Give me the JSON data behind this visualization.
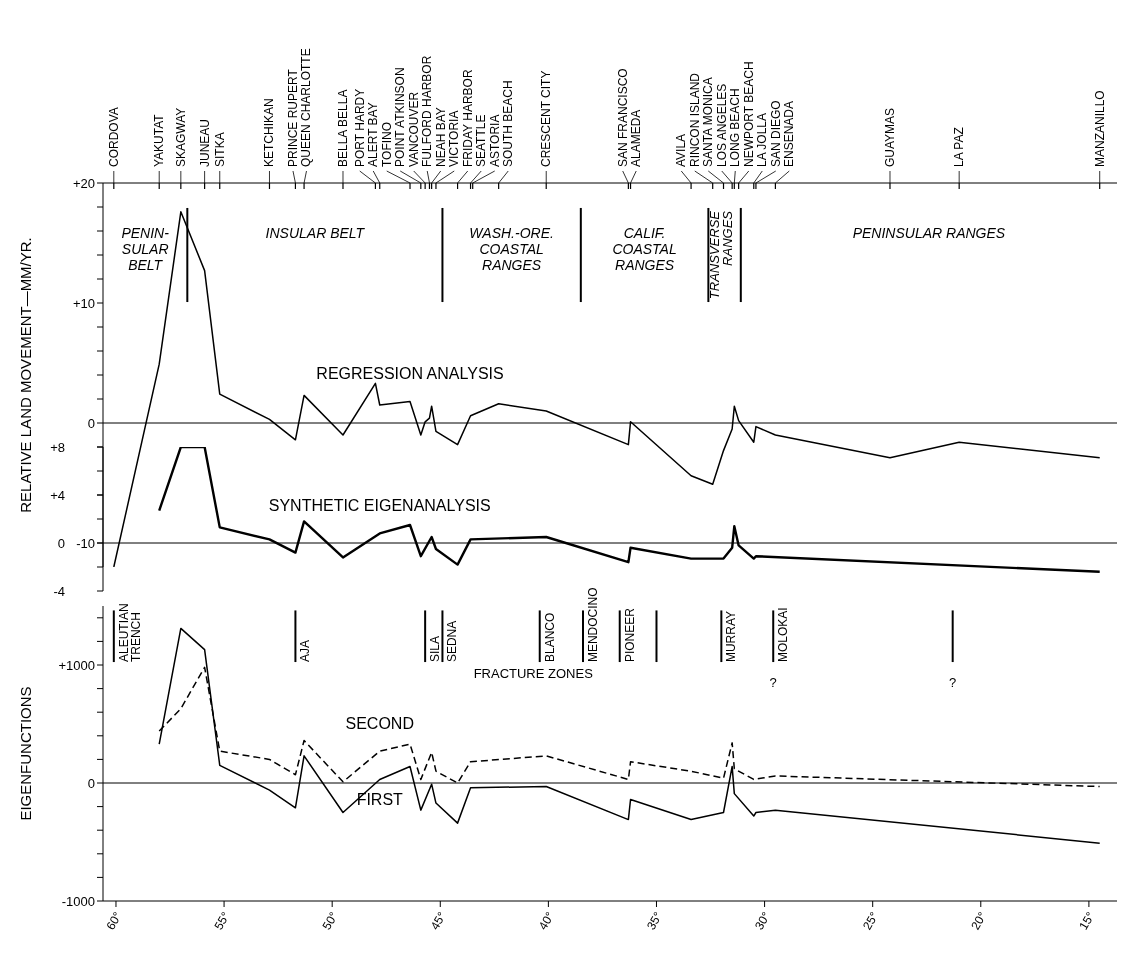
{
  "chart_data": [
    {
      "type": "line",
      "ylabel": "RELATIVE LAND MOVEMENT—MM/YR.",
      "marker": "none",
      "tick_labels": "y",
      "xlim": [
        60.6,
        13.7
      ],
      "ylim": [
        -12,
        20
      ],
      "yticks": [
        {
          "value": 20,
          "label": "+20"
        },
        {
          "value": 18,
          "label": null
        },
        {
          "value": 16,
          "label": null
        },
        {
          "value": 14,
          "label": null
        },
        {
          "value": 12,
          "label": null
        },
        {
          "value": 10,
          "label": "+10"
        },
        {
          "value": 8,
          "label": null
        },
        {
          "value": 6,
          "label": null
        },
        {
          "value": 4,
          "label": null
        },
        {
          "value": 2,
          "label": null
        },
        0,
        {
          "value": -2,
          "label": null
        },
        {
          "value": -4,
          "label": null
        },
        {
          "value": -6,
          "label": null
        },
        {
          "value": -8,
          "label": null
        },
        -10
      ],
      "series": [
        {
          "name": "REGRESSION ANALYSIS",
          "color": "#000000",
          "x": [
            60.1,
            58.0,
            57.0,
            55.9,
            55.2,
            52.9,
            51.7,
            51.3,
            49.5,
            48.0,
            47.8,
            46.4,
            45.9,
            45.7,
            45.5,
            45.4,
            45.2,
            44.2,
            43.6,
            42.3,
            40.1,
            36.3,
            36.2,
            33.4,
            32.4,
            31.9,
            31.5,
            31.4,
            31.2,
            30.5,
            30.4,
            29.5,
            24.2,
            21.0,
            14.5
          ],
          "values": [
            -12.0,
            4.9,
            17.6,
            12.7,
            2.4,
            0.3,
            -1.4,
            2.3,
            -1.0,
            3.3,
            1.5,
            1.8,
            -1.0,
            0.1,
            0.4,
            1.4,
            -0.7,
            -1.8,
            0.6,
            1.6,
            1.0,
            -1.8,
            0.1,
            -4.4,
            -5.1,
            -2.3,
            -0.5,
            1.4,
            0.2,
            -1.6,
            -0.3,
            -1.0,
            -2.9,
            -1.6,
            -2.9
          ]
        }
      ],
      "ref_lines": [
        {
          "axis": "y",
          "value": 0
        },
        {
          "axis": "x",
          "value": 56.7
        },
        {
          "axis": "x",
          "value": 44.9
        },
        {
          "axis": "x",
          "value": 38.5
        },
        {
          "axis": "x",
          "value": 32.6
        },
        {
          "axis": "x",
          "value": 31.1
        }
      ],
      "annotations": [
        {
          "text": "CORDOVA",
          "x": 60.1
        },
        {
          "text": "YAKUTAT",
          "x": 58.0
        },
        {
          "text": "SKAGWAY",
          "x": 57.0
        },
        {
          "text": "JUNEAU",
          "x": 55.9
        },
        {
          "text": "SITKA",
          "x": 55.2
        },
        {
          "text": "KETCHIKAN",
          "x": 52.9
        },
        {
          "text": "PRINCE RUPERT",
          "x": 51.7
        },
        {
          "text": "QUEEN CHARLOTTE",
          "x": 51.3
        },
        {
          "text": "BELLA BELLA",
          "x": 49.5
        },
        {
          "text": "PORT HARDY",
          "x": 48.0
        },
        {
          "text": "ALERT BAY",
          "x": 47.8
        },
        {
          "text": "TOFINO",
          "x": 46.4
        },
        {
          "text": "POINT ATKINSON",
          "x": 45.9
        },
        {
          "text": "VANCOUVER",
          "x": 45.7
        },
        {
          "text": "FULFORD HARBOR",
          "x": 45.5
        },
        {
          "text": "NEAH BAY",
          "x": 45.4
        },
        {
          "text": "VICTORIA",
          "x": 45.2
        },
        {
          "text": "FRIDAY HARBOR",
          "x": 44.2
        },
        {
          "text": "SEATTLE",
          "x": 43.6
        },
        {
          "text": "ASTORIA",
          "x": 43.5
        },
        {
          "text": "SOUTH BEACH",
          "x": 42.3
        },
        {
          "text": "CRESCENT CITY",
          "x": 40.1
        },
        {
          "text": "SAN FRANCISCO",
          "x": 36.3
        },
        {
          "text": "ALAMEDA",
          "x": 36.2
        },
        {
          "text": "AVILA",
          "x": 33.4
        },
        {
          "text": "RINCON ISLAND",
          "x": 32.4
        },
        {
          "text": "SANTA MONICA",
          "x": 31.9
        },
        {
          "text": "LOS ANGELES",
          "x": 31.5
        },
        {
          "text": "LONG BEACH",
          "x": 31.4
        },
        {
          "text": "NEWPORT BEACH",
          "x": 31.2
        },
        {
          "text": "LA JOLLA",
          "x": 30.5
        },
        {
          "text": "SAN DIEGO",
          "x": 30.4
        },
        {
          "text": "ENSENADA",
          "x": 29.5
        },
        {
          "text": "GUAYMAS",
          "x": 24.2
        },
        {
          "text": "LA PAZ",
          "x": 21.0
        },
        {
          "text": "MANZANILLO",
          "x": 14.5
        },
        "PENIN-\nSULAR\nBELT",
        "INSULAR BELT",
        "WASH.-ORE.\nCOASTAL\nRANGES",
        "CALIF.\nCOASTAL\nRANGES",
        "TRANSVERSE\nRANGES",
        "PENINSULAR RANGES"
      ]
    },
    {
      "type": "line",
      "tick_labels": "y",
      "marker": "none",
      "xlim": [
        60.6,
        13.7
      ],
      "ylim": [
        -4,
        8
      ],
      "yticks": [
        {
          "value": 8,
          "label": "+8"
        },
        {
          "value": 4,
          "label": "+4"
        },
        0,
        {
          "value": -2,
          "label": null
        },
        -4
      ],
      "series": [
        {
          "name": "SYNTHETIC EIGENANALYSIS",
          "color": "#000000",
          "x": [
            58.0,
            57.0,
            55.9,
            55.2,
            52.9,
            51.7,
            51.3,
            49.5,
            47.8,
            46.4,
            45.9,
            45.4,
            45.2,
            44.2,
            43.6,
            40.1,
            36.3,
            36.2,
            33.4,
            31.9,
            31.5,
            31.4,
            31.2,
            30.5,
            30.4,
            14.5
          ],
          "values": [
            2.7,
            8.0,
            8.0,
            1.3,
            0.3,
            -0.8,
            1.8,
            -1.2,
            0.8,
            1.5,
            -1.1,
            0.5,
            -0.5,
            -1.8,
            0.3,
            0.5,
            -1.6,
            -0.4,
            -1.3,
            -1.3,
            -0.4,
            1.4,
            -0.2,
            -1.3,
            -1.1,
            -2.4
          ]
        }
      ],
      "ref_lines": [
        {
          "axis": "y",
          "value": 0
        }
      ]
    },
    {
      "type": "line",
      "ylabel": "EIGENFUNCTIONS",
      "marker": "none",
      "xlim": [
        60.6,
        13.7
      ],
      "xticks": [
        {
          "value": 60,
          "label": "60°"
        },
        {
          "value": 55,
          "label": "55°"
        },
        {
          "value": 50,
          "label": "50°"
        },
        {
          "value": 45,
          "label": "45°"
        },
        {
          "value": 40,
          "label": "40°"
        },
        {
          "value": 35,
          "label": "35°"
        },
        {
          "value": 30,
          "label": "30°"
        },
        {
          "value": 25,
          "label": "25°"
        },
        {
          "value": 20,
          "label": "20°"
        },
        {
          "value": 15,
          "label": "15°"
        }
      ],
      "ylim": [
        -1000,
        1500
      ],
      "yticks": [
        {
          "value": 1400,
          "label": null
        },
        {
          "value": 1200,
          "label": null
        },
        {
          "value": 1000,
          "label": "+1000"
        },
        {
          "value": 800,
          "label": null
        },
        {
          "value": 600,
          "label": null
        },
        {
          "value": 400,
          "label": null
        },
        {
          "value": 200,
          "label": null
        },
        0,
        {
          "value": -200,
          "label": null
        },
        {
          "value": -400,
          "label": null
        },
        {
          "value": -600,
          "label": null
        },
        {
          "value": -800,
          "label": null
        },
        -1000
      ],
      "series": [
        {
          "name": "FIRST",
          "color": "#000000",
          "line_style": "solid",
          "x": [
            58.0,
            57.0,
            55.9,
            55.2,
            52.9,
            51.7,
            51.3,
            49.5,
            47.8,
            46.4,
            45.9,
            45.4,
            45.2,
            44.2,
            43.6,
            40.1,
            36.3,
            36.2,
            33.4,
            31.9,
            31.5,
            31.4,
            30.5,
            30.4,
            29.5,
            14.5
          ],
          "values": [
            330,
            1310,
            1130,
            150,
            -60,
            -210,
            230,
            -250,
            30,
            140,
            -230,
            -10,
            -170,
            -340,
            -40,
            -30,
            -310,
            -140,
            -310,
            -250,
            140,
            -90,
            -280,
            -250,
            -230,
            -510
          ]
        },
        {
          "name": "SECOND",
          "color": "#000000",
          "line_style": "dashed",
          "x": [
            58.0,
            57.0,
            55.9,
            55.2,
            52.9,
            51.7,
            51.3,
            49.5,
            47.8,
            46.4,
            45.9,
            45.4,
            45.2,
            44.2,
            43.6,
            40.1,
            36.3,
            36.2,
            33.4,
            31.9,
            31.5,
            31.4,
            30.5,
            29.5,
            14.5
          ],
          "values": [
            440,
            630,
            980,
            270,
            200,
            70,
            360,
            10,
            270,
            330,
            30,
            260,
            100,
            0,
            180,
            230,
            30,
            180,
            100,
            40,
            340,
            120,
            30,
            60,
            -30
          ]
        }
      ],
      "ref_lines": [
        {
          "axis": "y",
          "value": 0
        },
        {
          "axis": "x",
          "value": 60.1,
          "label": "ALEUTIAN\nTRENCH"
        },
        {
          "axis": "x",
          "value": 51.7,
          "label": "AJA"
        },
        {
          "axis": "x",
          "value": 45.7,
          "label": "SILA"
        },
        {
          "axis": "x",
          "value": 44.9,
          "label": "SEDNA"
        },
        {
          "axis": "x",
          "value": 40.4,
          "label": "BLANCO"
        },
        {
          "axis": "x",
          "value": 38.4,
          "label": "MENDOCINO"
        },
        {
          "axis": "x",
          "value": 36.7,
          "label": "PIONEER"
        },
        {
          "axis": "x",
          "value": 35.0
        },
        {
          "axis": "x",
          "value": 32.0,
          "label": "MURRAY"
        },
        {
          "axis": "x",
          "value": 29.6,
          "label": "MOLOKAI"
        },
        {
          "axis": "x",
          "value": 21.3
        }
      ],
      "annotations": [
        "FRACTURE ZONES",
        {
          "text": "?",
          "x": 29.6,
          "y": 1050
        },
        {
          "text": "?",
          "x": 21.3,
          "y": 1050
        }
      ]
    }
  ]
}
